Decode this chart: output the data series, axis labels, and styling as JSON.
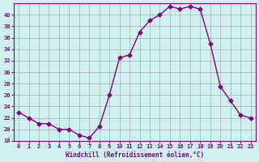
{
  "x": [
    0,
    1,
    2,
    3,
    4,
    5,
    6,
    7,
    8,
    9,
    10,
    11,
    12,
    13,
    14,
    15,
    16,
    17,
    18,
    19,
    20,
    21,
    22,
    23
  ],
  "y": [
    23,
    22,
    21,
    21,
    20,
    20,
    19,
    18.5,
    20.5,
    26,
    32.5,
    33,
    37,
    39,
    40,
    41.5,
    41,
    41.5,
    41,
    35,
    27.5,
    25,
    22.5,
    22
  ],
  "line_color": "#800080",
  "marker": "D",
  "marker_size": 2.5,
  "bg_color": "#cff0f0",
  "grid_color": "#aaaaaa",
  "xlabel": "Windchill (Refroidissement éolien,°C)",
  "xlabel_color": "#800080",
  "tick_color": "#800080",
  "ylim": [
    18,
    42
  ],
  "yticks": [
    18,
    20,
    22,
    24,
    26,
    28,
    30,
    32,
    34,
    36,
    38,
    40
  ],
  "xticks": [
    0,
    1,
    2,
    3,
    4,
    5,
    6,
    7,
    8,
    9,
    10,
    11,
    12,
    13,
    14,
    15,
    16,
    17,
    18,
    19,
    20,
    21,
    22,
    23
  ]
}
